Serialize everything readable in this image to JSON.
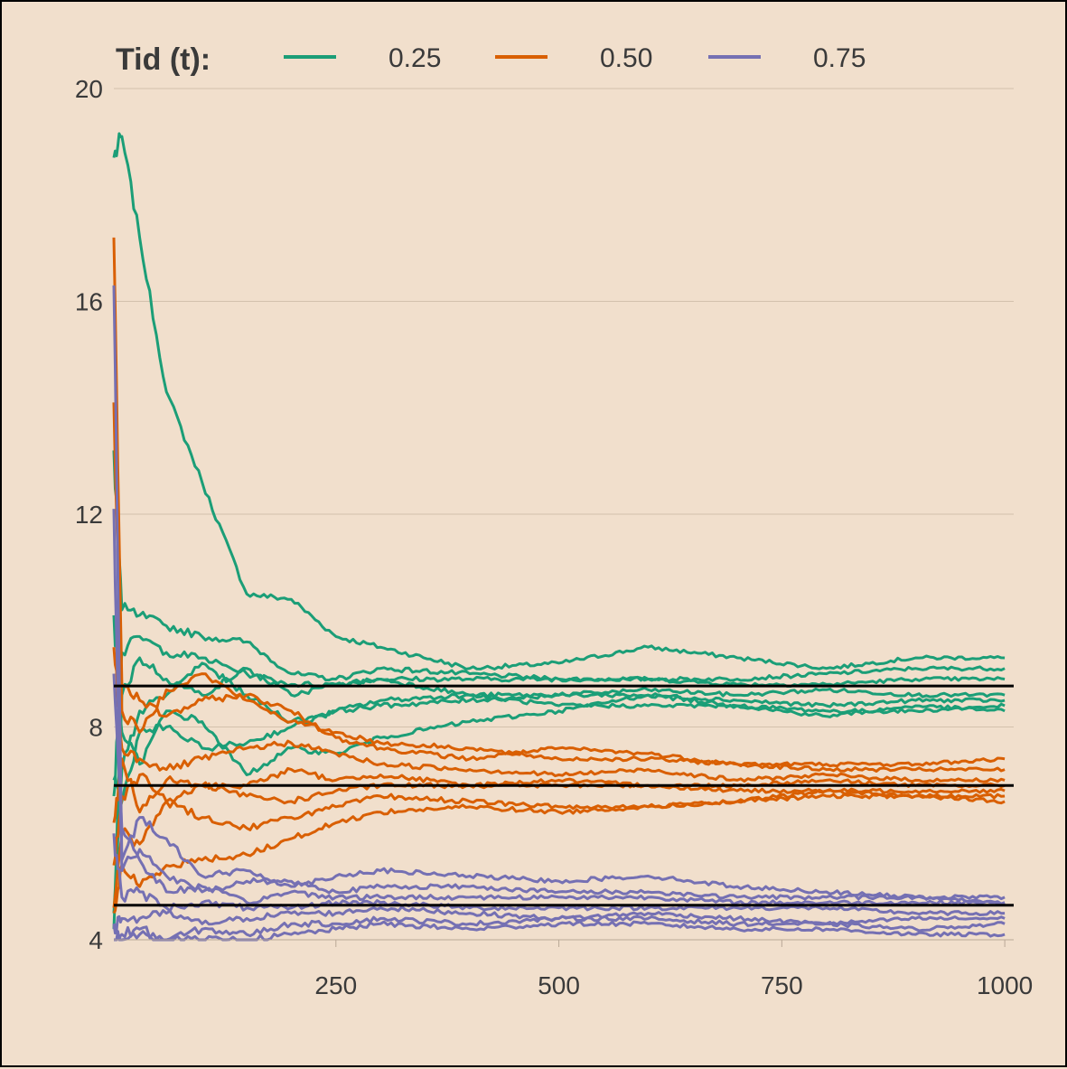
{
  "chart_data": {
    "type": "line",
    "title": "",
    "xlabel": "",
    "ylabel": "",
    "xlim": [
      1,
      1010
    ],
    "ylim": [
      4,
      20
    ],
    "x_ticks": [
      250,
      500,
      750,
      1000
    ],
    "y_ticks": [
      4,
      8,
      12,
      16,
      20
    ],
    "x_tick_labels": [
      "250",
      "500",
      "750",
      "1000"
    ],
    "y_tick_labels": [
      "4",
      "8",
      "12",
      "16",
      "20"
    ],
    "grid": "horizontal-major",
    "legend": {
      "position": "top",
      "title": "Tid (t):",
      "entries": [
        {
          "label": "0.25",
          "color": "#1b9e77"
        },
        {
          "label": "0.50",
          "color": "#d95f02"
        },
        {
          "label": "0.75",
          "color": "#7570b3"
        }
      ]
    },
    "reference_lines": [
      {
        "y": 8.77,
        "color": "#000000"
      },
      {
        "y": 6.9,
        "color": "#000000"
      },
      {
        "y": 4.65,
        "color": "#000000"
      }
    ],
    "series": [
      {
        "group": "0.25",
        "color": "#1b9e77",
        "x": [
          1,
          10,
          30,
          60,
          100,
          150,
          200,
          250,
          300,
          400,
          500,
          600,
          700,
          800,
          900,
          1000
        ],
        "y": [
          18.7,
          19.1,
          17.2,
          14.3,
          12.6,
          10.5,
          10.4,
          9.7,
          9.5,
          9.1,
          9.2,
          9.5,
          9.3,
          9.1,
          9.3,
          9.3
        ]
      },
      {
        "group": "0.25",
        "color": "#1b9e77",
        "x": [
          1,
          10,
          30,
          60,
          100,
          150,
          200,
          250,
          300,
          400,
          500,
          600,
          700,
          800,
          900,
          1000
        ],
        "y": [
          13.2,
          10.2,
          10.1,
          9.9,
          9.7,
          9.6,
          9.0,
          8.9,
          9.1,
          9.0,
          8.9,
          8.9,
          8.9,
          9.0,
          9.1,
          9.1
        ]
      },
      {
        "group": "0.25",
        "color": "#1b9e77",
        "x": [
          1,
          10,
          30,
          60,
          100,
          150,
          200,
          250,
          300,
          400,
          500,
          600,
          700,
          800,
          900,
          1000
        ],
        "y": [
          6.7,
          9.4,
          9.7,
          9.4,
          9.3,
          9.0,
          8.8,
          8.8,
          8.9,
          8.9,
          8.9,
          8.9,
          8.8,
          8.8,
          8.9,
          8.9
        ]
      },
      {
        "group": "0.25",
        "color": "#1b9e77",
        "x": [
          1,
          10,
          30,
          60,
          100,
          150,
          200,
          250,
          300,
          400,
          500,
          600,
          700,
          800,
          900,
          1000
        ],
        "y": [
          4.5,
          8.6,
          9.3,
          8.9,
          8.6,
          9.1,
          8.6,
          8.8,
          8.9,
          8.6,
          8.6,
          8.7,
          8.6,
          8.7,
          8.6,
          8.6
        ]
      },
      {
        "group": "0.25",
        "color": "#1b9e77",
        "x": [
          1,
          10,
          30,
          60,
          100,
          150,
          200,
          250,
          300,
          400,
          500,
          600,
          700,
          800,
          900,
          1000
        ],
        "y": [
          4.2,
          7.2,
          8.3,
          8.6,
          9.2,
          8.6,
          8.1,
          8.3,
          8.4,
          8.5,
          8.6,
          8.6,
          8.5,
          8.4,
          8.5,
          8.5
        ]
      },
      {
        "group": "0.25",
        "color": "#1b9e77",
        "x": [
          1,
          10,
          30,
          60,
          100,
          150,
          200,
          250,
          300,
          400,
          500,
          600,
          700,
          800,
          900,
          1000
        ],
        "y": [
          7.0,
          6.6,
          7.9,
          8.0,
          7.6,
          7.7,
          8.0,
          8.3,
          8.5,
          8.6,
          8.4,
          8.4,
          8.4,
          8.3,
          8.3,
          8.4
        ]
      },
      {
        "group": "0.25",
        "color": "#1b9e77",
        "x": [
          1,
          10,
          30,
          60,
          100,
          150,
          200,
          250,
          300,
          400,
          500,
          600,
          700,
          800,
          900,
          1000
        ],
        "y": [
          10.1,
          7.9,
          7.3,
          8.3,
          8.1,
          7.1,
          7.6,
          7.5,
          7.8,
          8.1,
          8.3,
          8.6,
          8.4,
          8.2,
          8.4,
          8.3
        ]
      },
      {
        "group": "0.50",
        "color": "#d95f02",
        "x": [
          1,
          10,
          30,
          60,
          100,
          150,
          200,
          250,
          300,
          400,
          500,
          600,
          700,
          800,
          900,
          1000
        ],
        "y": [
          17.2,
          8.8,
          8.5,
          8.2,
          8.5,
          8.6,
          8.3,
          7.8,
          7.6,
          7.4,
          7.6,
          7.5,
          7.3,
          7.3,
          7.3,
          7.4
        ]
      },
      {
        "group": "0.50",
        "color": "#d95f02",
        "x": [
          1,
          10,
          30,
          60,
          100,
          150,
          200,
          250,
          300,
          400,
          500,
          600,
          700,
          800,
          900,
          1000
        ],
        "y": [
          14.1,
          8.3,
          7.9,
          8.7,
          9.0,
          8.5,
          8.1,
          7.9,
          7.7,
          7.6,
          7.4,
          7.4,
          7.3,
          7.2,
          7.2,
          7.2
        ]
      },
      {
        "group": "0.50",
        "color": "#d95f02",
        "x": [
          1,
          10,
          30,
          60,
          100,
          150,
          200,
          250,
          300,
          400,
          500,
          600,
          700,
          800,
          900,
          1000
        ],
        "y": [
          9.5,
          7.6,
          7.4,
          7.2,
          7.4,
          7.6,
          7.7,
          7.5,
          7.3,
          7.2,
          7.1,
          7.2,
          7.0,
          7.1,
          7.0,
          7.0
        ]
      },
      {
        "group": "0.50",
        "color": "#d95f02",
        "x": [
          1,
          10,
          30,
          60,
          100,
          150,
          200,
          250,
          300,
          400,
          500,
          600,
          700,
          800,
          900,
          1000
        ],
        "y": [
          6.2,
          7.4,
          6.4,
          7.0,
          6.9,
          6.9,
          7.2,
          7.0,
          7.1,
          6.9,
          7.0,
          6.9,
          6.9,
          7.0,
          6.9,
          6.9
        ]
      },
      {
        "group": "0.50",
        "color": "#d95f02",
        "x": [
          1,
          10,
          30,
          60,
          100,
          150,
          200,
          250,
          300,
          400,
          500,
          600,
          700,
          800,
          900,
          1000
        ],
        "y": [
          5.4,
          6.7,
          7.1,
          6.6,
          6.9,
          6.7,
          6.6,
          6.8,
          6.9,
          6.9,
          6.9,
          6.9,
          6.8,
          6.8,
          6.8,
          6.8
        ]
      },
      {
        "group": "0.50",
        "color": "#d95f02",
        "x": [
          1,
          10,
          30,
          60,
          100,
          150,
          200,
          250,
          300,
          400,
          500,
          600,
          700,
          800,
          900,
          1000
        ],
        "y": [
          4.6,
          6.0,
          5.8,
          6.6,
          6.3,
          6.1,
          6.3,
          6.5,
          6.7,
          6.6,
          6.5,
          6.5,
          6.6,
          6.7,
          6.7,
          6.7
        ]
      },
      {
        "group": "0.50",
        "color": "#d95f02",
        "x": [
          1,
          10,
          30,
          60,
          100,
          150,
          200,
          250,
          300,
          400,
          500,
          600,
          700,
          800,
          900,
          1000
        ],
        "y": [
          4.5,
          5.4,
          5.0,
          5.4,
          5.5,
          5.6,
          5.9,
          6.2,
          6.4,
          6.5,
          6.4,
          6.5,
          6.6,
          6.8,
          6.7,
          6.6
        ]
      },
      {
        "group": "0.75",
        "color": "#7570b3",
        "x": [
          1,
          10,
          30,
          60,
          100,
          150,
          200,
          250,
          300,
          400,
          500,
          600,
          700,
          800,
          900,
          1000
        ],
        "y": [
          16.3,
          5.5,
          6.3,
          5.9,
          5.2,
          5.3,
          5.0,
          5.2,
          5.3,
          5.2,
          5.1,
          5.2,
          5.0,
          4.9,
          4.8,
          4.8
        ]
      },
      {
        "group": "0.75",
        "color": "#7570b3",
        "x": [
          1,
          10,
          30,
          60,
          100,
          150,
          200,
          250,
          300,
          400,
          500,
          600,
          700,
          800,
          900,
          1000
        ],
        "y": [
          12.1,
          5.3,
          5.7,
          5.2,
          4.9,
          5.1,
          5.1,
          4.9,
          5.0,
          5.0,
          4.9,
          4.9,
          4.8,
          4.8,
          4.8,
          4.7
        ]
      },
      {
        "group": "0.75",
        "color": "#7570b3",
        "x": [
          1,
          10,
          30,
          60,
          100,
          150,
          200,
          250,
          300,
          400,
          500,
          600,
          700,
          800,
          900,
          1000
        ],
        "y": [
          9.0,
          6.1,
          5.5,
          4.9,
          5.0,
          4.7,
          4.9,
          4.8,
          4.8,
          4.8,
          4.8,
          4.8,
          4.7,
          4.7,
          4.7,
          4.7
        ]
      },
      {
        "group": "0.75",
        "color": "#7570b3",
        "x": [
          1,
          10,
          30,
          60,
          100,
          150,
          200,
          250,
          300,
          400,
          500,
          600,
          700,
          800,
          900,
          1000
        ],
        "y": [
          6.0,
          4.8,
          4.9,
          4.6,
          4.7,
          4.6,
          4.6,
          4.7,
          4.7,
          4.6,
          4.6,
          4.6,
          4.6,
          4.6,
          4.5,
          4.5
        ]
      },
      {
        "group": "0.75",
        "color": "#7570b3",
        "x": [
          1,
          10,
          30,
          60,
          100,
          150,
          200,
          250,
          300,
          400,
          500,
          600,
          700,
          800,
          900,
          1000
        ],
        "y": [
          4.3,
          4.4,
          4.4,
          4.5,
          4.3,
          4.4,
          4.5,
          4.5,
          4.6,
          4.5,
          4.4,
          4.5,
          4.4,
          4.3,
          4.4,
          4.4
        ]
      },
      {
        "group": "0.75",
        "color": "#7570b3",
        "x": [
          1,
          10,
          30,
          60,
          100,
          150,
          200,
          250,
          300,
          400,
          500,
          600,
          700,
          800,
          900,
          1000
        ],
        "y": [
          4.0,
          4.1,
          4.2,
          4.0,
          4.2,
          4.1,
          4.3,
          4.3,
          4.4,
          4.3,
          4.4,
          4.4,
          4.3,
          4.3,
          4.2,
          4.3
        ]
      },
      {
        "group": "0.75",
        "color": "#7570b3",
        "x": [
          1,
          10,
          30,
          60,
          100,
          150,
          200,
          250,
          300,
          400,
          500,
          600,
          700,
          800,
          900,
          1000
        ],
        "y": [
          4.2,
          4.0,
          4.1,
          4.0,
          4.0,
          4.0,
          4.1,
          4.2,
          4.3,
          4.2,
          4.3,
          4.3,
          4.2,
          4.2,
          4.1,
          4.1
        ]
      }
    ]
  }
}
